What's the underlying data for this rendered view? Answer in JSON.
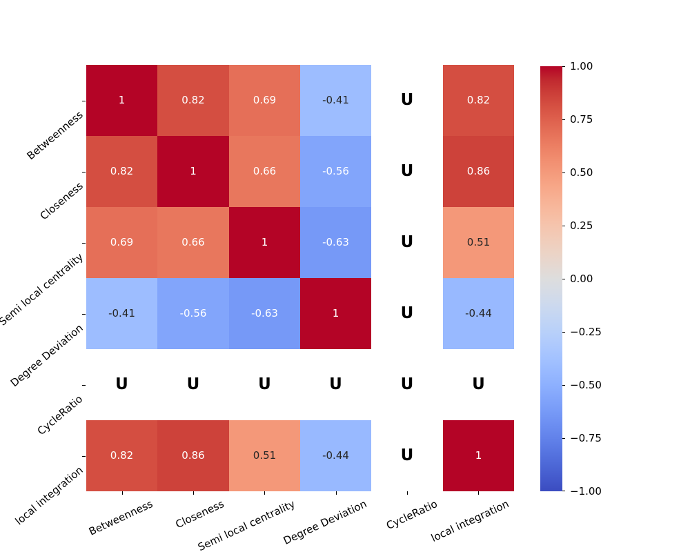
{
  "chart_data": {
    "type": "heatmap",
    "categories": [
      "Betweenness",
      "Closeness",
      "Semi local centrality",
      "Degree Deviation",
      "CycleRatio",
      "local integration"
    ],
    "matrix": [
      [
        1,
        0.82,
        0.69,
        -0.41,
        null,
        0.82
      ],
      [
        0.82,
        1,
        0.66,
        -0.56,
        null,
        0.86
      ],
      [
        0.69,
        0.66,
        1,
        -0.63,
        null,
        0.51
      ],
      [
        -0.41,
        -0.56,
        -0.63,
        1,
        null,
        -0.44
      ],
      [
        null,
        null,
        null,
        null,
        null,
        null
      ],
      [
        0.82,
        0.86,
        0.51,
        -0.44,
        null,
        1
      ]
    ],
    "nan_marker": "U",
    "colormap": "coolwarm",
    "vmin": -1,
    "vmax": 1,
    "grid": false,
    "colorbar": {
      "position": "right",
      "tick_labels": [
        "1.00",
        "0.75",
        "0.50",
        "0.25",
        "0.00",
        "−0.25",
        "−0.50",
        "−0.75",
        "−1.00"
      ]
    },
    "colormap_stops": [
      "#3B4CC0",
      "#445ACC",
      "#4D68D7",
      "#5775E1",
      "#6282EA",
      "#6C8EF1",
      "#779AF7",
      "#82A5FB",
      "#8DB0FE",
      "#98B9FF",
      "#A3C2FF",
      "#AEC9FD",
      "#B8D0F9",
      "#C2D5F4",
      "#CCD9EE",
      "#D5DBE6",
      "#DDDDDD",
      "#E5D8D1",
      "#ECD3C5",
      "#F1CCB9",
      "#F5C4AD",
      "#F7BBA0",
      "#F7B194",
      "#F7A687",
      "#F49A7B",
      "#F18D6F",
      "#EC7F63",
      "#E57058",
      "#DE604D",
      "#D55042",
      "#CB3E38",
      "#C0282F",
      "#B40426"
    ],
    "annotation_colors": {
      "on_dark": "#FFFFFF",
      "on_light": "#262626"
    }
  }
}
